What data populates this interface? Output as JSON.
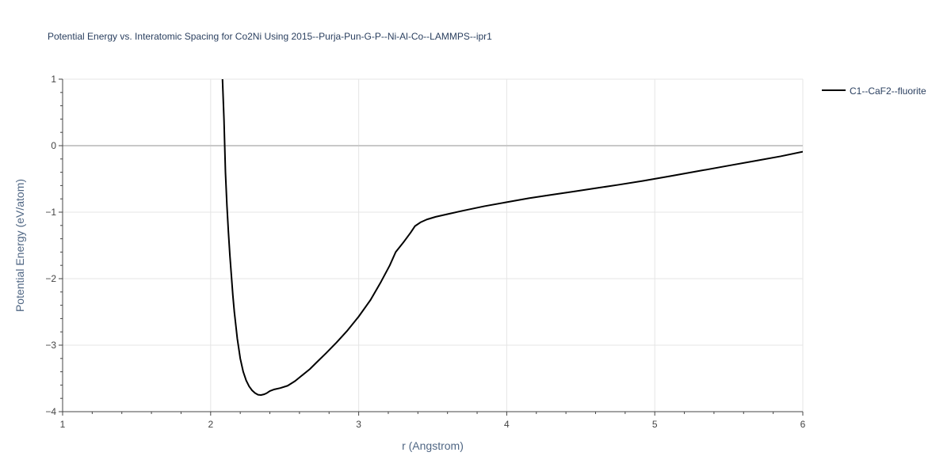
{
  "chart_data": {
    "type": "line",
    "title": "Potential Energy vs. Interatomic Spacing for Co2Ni Using 2015--Purja-Pun-G-P--Ni-Al-Co--LAMMPS--ipr1",
    "xlabel": "r (Angstrom)",
    "ylabel": "Potential Energy (eV/atom)",
    "xlim": [
      1,
      6
    ],
    "ylim": [
      -4,
      1
    ],
    "x_ticks": [
      1,
      2,
      3,
      4,
      5,
      6
    ],
    "y_ticks": [
      -4,
      -3,
      -2,
      -1,
      0,
      1
    ],
    "x_tick_labels": [
      "1",
      "2",
      "3",
      "4",
      "5",
      "6"
    ],
    "y_tick_labels": [
      "−4",
      "−3",
      "−2",
      "−1",
      "0",
      "1"
    ],
    "grid": true,
    "legend_position": "top-right",
    "series": [
      {
        "name": "C1--CaF2--fluorite",
        "color": "#000000",
        "x": [
          2.08,
          2.09,
          2.1,
          2.11,
          2.12,
          2.13,
          2.14,
          2.15,
          2.16,
          2.17,
          2.18,
          2.19,
          2.2,
          2.22,
          2.24,
          2.26,
          2.28,
          2.3,
          2.32,
          2.34,
          2.36,
          2.38,
          2.4,
          2.43,
          2.47,
          2.52,
          2.57,
          2.62,
          2.67,
          2.72,
          2.78,
          2.85,
          2.92,
          3.0,
          3.08,
          3.15,
          3.21,
          3.25,
          3.3,
          3.35,
          3.38,
          3.42,
          3.46,
          3.52,
          3.6,
          3.7,
          3.85,
          4.0,
          4.15,
          4.3,
          4.45,
          4.6,
          4.75,
          4.92,
          5.1,
          5.3,
          5.5,
          5.7,
          5.85,
          6.0
        ],
        "y": [
          1.0,
          0.4,
          -0.4,
          -0.9,
          -1.3,
          -1.65,
          -1.95,
          -2.25,
          -2.5,
          -2.7,
          -2.9,
          -3.05,
          -3.2,
          -3.4,
          -3.53,
          -3.62,
          -3.68,
          -3.72,
          -3.745,
          -3.75,
          -3.74,
          -3.72,
          -3.69,
          -3.665,
          -3.645,
          -3.61,
          -3.54,
          -3.45,
          -3.36,
          -3.25,
          -3.12,
          -2.96,
          -2.79,
          -2.57,
          -2.32,
          -2.05,
          -1.8,
          -1.6,
          -1.46,
          -1.31,
          -1.21,
          -1.15,
          -1.11,
          -1.07,
          -1.03,
          -0.98,
          -0.91,
          -0.85,
          -0.79,
          -0.74,
          -0.69,
          -0.64,
          -0.59,
          -0.53,
          -0.46,
          -0.38,
          -0.3,
          -0.22,
          -0.16,
          -0.09
        ]
      }
    ]
  }
}
